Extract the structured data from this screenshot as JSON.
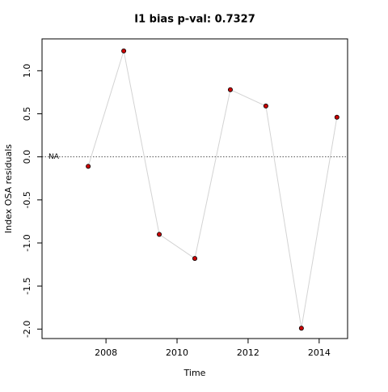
{
  "chart_data": {
    "type": "line",
    "title": "I1 bias p-val: 0.7327",
    "title_color": "#228b22",
    "x_label": "Time",
    "y_label": "Index OSA residuals",
    "x": [
      2007.5,
      2008.5,
      2009.5,
      2010.5,
      2011.5,
      2012.5,
      2013.5,
      2014.5
    ],
    "series": [
      {
        "name": "I1",
        "color": "#cc0000",
        "values": [
          -0.11,
          1.23,
          -0.9,
          -1.18,
          0.78,
          0.59,
          -1.99,
          0.46
        ]
      }
    ],
    "line_color": "#d3d3d3",
    "xlim": [
      2006.2,
      2014.8
    ],
    "xticks": [
      2008,
      2010,
      2012,
      2014
    ],
    "ylim": [
      -2.11,
      1.37
    ],
    "yticks": [
      {
        "value": -2,
        "label": "-2.0"
      },
      {
        "value": -1.5,
        "label": "-1.5"
      },
      {
        "value": -1,
        "label": "-1.0"
      },
      {
        "value": -0.5,
        "label": "-0.5"
      },
      {
        "value": 0,
        "label": "0.0"
      },
      {
        "value": 0.5,
        "label": "0.5"
      },
      {
        "value": 1,
        "label": "1.0"
      }
    ],
    "reference_line": 0,
    "reference_label": "NA"
  }
}
